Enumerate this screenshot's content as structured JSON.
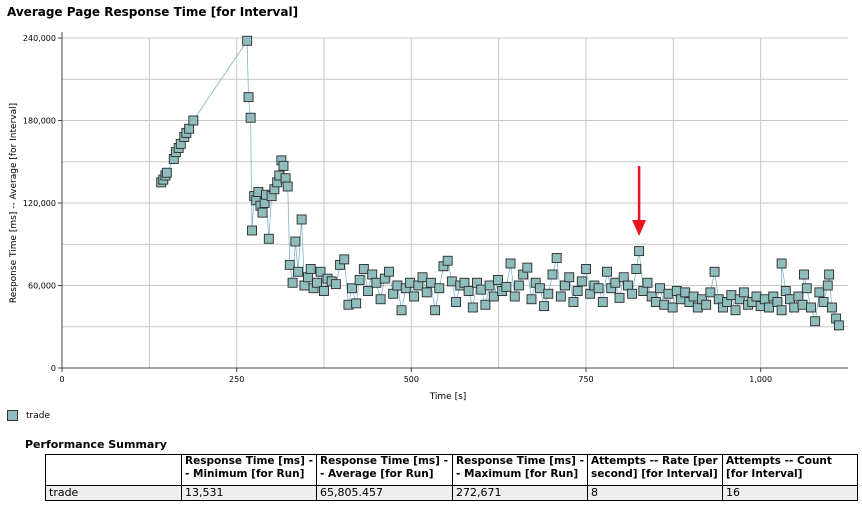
{
  "title": "Average Page Response Time [for Interval]",
  "chart_data": {
    "type": "scatter",
    "title": "Average Page Response Time [for Interval]",
    "xlabel": "Time [s]",
    "ylabel": "Response Time [ms] -- Average [for Interval]",
    "xlim": [
      0,
      1125
    ],
    "ylim": [
      0,
      240000
    ],
    "x_ticks": [
      0,
      250,
      500,
      750,
      1000
    ],
    "x_tick_labels": [
      "0",
      "250",
      "500",
      "750",
      "1,000"
    ],
    "y_ticks": [
      0,
      60000,
      120000,
      180000,
      240000
    ],
    "y_tick_labels": [
      "0",
      "60,000",
      "120,000",
      "180,000",
      "240,000"
    ],
    "grid": true,
    "legend_placement": "bottom-left",
    "series": [
      {
        "name": "trade",
        "color": "#8fbcbc",
        "points": [
          [
            142,
            135000
          ],
          [
            145,
            137000
          ],
          [
            148,
            140000
          ],
          [
            150,
            142000
          ],
          [
            160,
            152000
          ],
          [
            163,
            157000
          ],
          [
            167,
            160000
          ],
          [
            170,
            163000
          ],
          [
            175,
            168000
          ],
          [
            178,
            171000
          ],
          [
            182,
            174000
          ],
          [
            188,
            180000
          ],
          [
            265,
            238000
          ],
          [
            267,
            197000
          ],
          [
            270,
            182000
          ],
          [
            272,
            100000
          ],
          [
            275,
            125000
          ],
          [
            278,
            122000
          ],
          [
            281,
            128000
          ],
          [
            284,
            118000
          ],
          [
            287,
            113000
          ],
          [
            290,
            120000
          ],
          [
            292,
            126000
          ],
          [
            296,
            94000
          ],
          [
            300,
            125000
          ],
          [
            304,
            130000
          ],
          [
            308,
            135000
          ],
          [
            311,
            140000
          ],
          [
            314,
            151000
          ],
          [
            317,
            147000
          ],
          [
            320,
            138000
          ],
          [
            323,
            132000
          ],
          [
            326,
            75000
          ],
          [
            330,
            62000
          ],
          [
            334,
            92000
          ],
          [
            338,
            70000
          ],
          [
            343,
            108000
          ],
          [
            347,
            60000
          ],
          [
            352,
            66000
          ],
          [
            356,
            72000
          ],
          [
            360,
            58000
          ],
          [
            365,
            62000
          ],
          [
            370,
            70000
          ],
          [
            375,
            56000
          ],
          [
            380,
            65000
          ],
          [
            386,
            63000
          ],
          [
            392,
            61000
          ],
          [
            398,
            75000
          ],
          [
            404,
            79000
          ],
          [
            410,
            46000
          ],
          [
            415,
            58000
          ],
          [
            421,
            47000
          ],
          [
            426,
            64000
          ],
          [
            432,
            72000
          ],
          [
            438,
            56000
          ],
          [
            444,
            68000
          ],
          [
            450,
            62000
          ],
          [
            456,
            50000
          ],
          [
            462,
            65000
          ],
          [
            468,
            70000
          ],
          [
            474,
            54000
          ],
          [
            480,
            60000
          ],
          [
            486,
            42000
          ],
          [
            492,
            58000
          ],
          [
            498,
            62000
          ],
          [
            504,
            52000
          ],
          [
            510,
            60000
          ],
          [
            516,
            66000
          ],
          [
            522,
            55000
          ],
          [
            528,
            62000
          ],
          [
            534,
            42000
          ],
          [
            540,
            58000
          ],
          [
            546,
            74000
          ],
          [
            552,
            78000
          ],
          [
            558,
            63000
          ],
          [
            564,
            48000
          ],
          [
            570,
            60000
          ],
          [
            576,
            62000
          ],
          [
            582,
            56000
          ],
          [
            588,
            44000
          ],
          [
            594,
            62000
          ],
          [
            600,
            57000
          ],
          [
            606,
            46000
          ],
          [
            612,
            60000
          ],
          [
            618,
            52000
          ],
          [
            624,
            64000
          ],
          [
            630,
            56000
          ],
          [
            636,
            59000
          ],
          [
            642,
            76000
          ],
          [
            648,
            52000
          ],
          [
            654,
            60000
          ],
          [
            660,
            68000
          ],
          [
            666,
            73000
          ],
          [
            672,
            50000
          ],
          [
            678,
            62000
          ],
          [
            684,
            58000
          ],
          [
            690,
            45000
          ],
          [
            696,
            54000
          ],
          [
            702,
            68000
          ],
          [
            708,
            80000
          ],
          [
            714,
            52000
          ],
          [
            720,
            60000
          ],
          [
            726,
            66000
          ],
          [
            732,
            48000
          ],
          [
            738,
            56000
          ],
          [
            744,
            63000
          ],
          [
            750,
            72000
          ],
          [
            756,
            54000
          ],
          [
            762,
            60000
          ],
          [
            768,
            58000
          ],
          [
            774,
            48000
          ],
          [
            780,
            70000
          ],
          [
            786,
            58000
          ],
          [
            792,
            62000
          ],
          [
            798,
            51000
          ],
          [
            804,
            66000
          ],
          [
            810,
            60000
          ],
          [
            816,
            54000
          ],
          [
            822,
            72000
          ],
          [
            826,
            85000
          ],
          [
            832,
            56000
          ],
          [
            838,
            62000
          ],
          [
            844,
            52000
          ],
          [
            850,
            48000
          ],
          [
            856,
            58000
          ],
          [
            862,
            46000
          ],
          [
            868,
            54000
          ],
          [
            874,
            44000
          ],
          [
            880,
            56000
          ],
          [
            886,
            50000
          ],
          [
            892,
            55000
          ],
          [
            898,
            48000
          ],
          [
            904,
            52000
          ],
          [
            910,
            44000
          ],
          [
            916,
            50000
          ],
          [
            922,
            46000
          ],
          [
            928,
            55000
          ],
          [
            934,
            70000
          ],
          [
            940,
            50000
          ],
          [
            946,
            44000
          ],
          [
            952,
            48000
          ],
          [
            958,
            53000
          ],
          [
            964,
            42000
          ],
          [
            970,
            50000
          ],
          [
            976,
            55000
          ],
          [
            982,
            46000
          ],
          [
            988,
            48000
          ],
          [
            994,
            52000
          ],
          [
            1000,
            45000
          ],
          [
            1006,
            50000
          ],
          [
            1012,
            44000
          ],
          [
            1018,
            52000
          ],
          [
            1024,
            48000
          ],
          [
            1030,
            42000
          ],
          [
            1036,
            56000
          ],
          [
            1042,
            50000
          ],
          [
            1048,
            44000
          ],
          [
            1054,
            52000
          ],
          [
            1060,
            46000
          ],
          [
            1066,
            58000
          ],
          [
            1072,
            44000
          ],
          [
            1078,
            34000
          ],
          [
            1084,
            55000
          ],
          [
            1090,
            48000
          ],
          [
            1096,
            60000
          ],
          [
            1102,
            44000
          ],
          [
            1108,
            36000
          ],
          [
            1112,
            31000
          ],
          [
            1030,
            76000
          ],
          [
            1062,
            68000
          ],
          [
            1098,
            68000
          ]
        ]
      }
    ],
    "annotation": {
      "type": "arrow",
      "target": [
        826,
        96000
      ],
      "color": "#e8141e"
    }
  },
  "legend": {
    "label": "trade"
  },
  "summary": {
    "title": "Performance Summary",
    "headers": [
      "",
      "Response Time [ms] -- Minimum [for Run]",
      "Response Time [ms] -- Average [for Run]",
      "Response Time [ms] -- Maximum [for Run]",
      "Attempts -- Rate [per second] [for Interval]",
      "Attempts -- Count [for Interval]"
    ],
    "rows": [
      [
        "trade",
        "13,531",
        "65,805.457",
        "272,671",
        "8",
        "16"
      ]
    ]
  }
}
